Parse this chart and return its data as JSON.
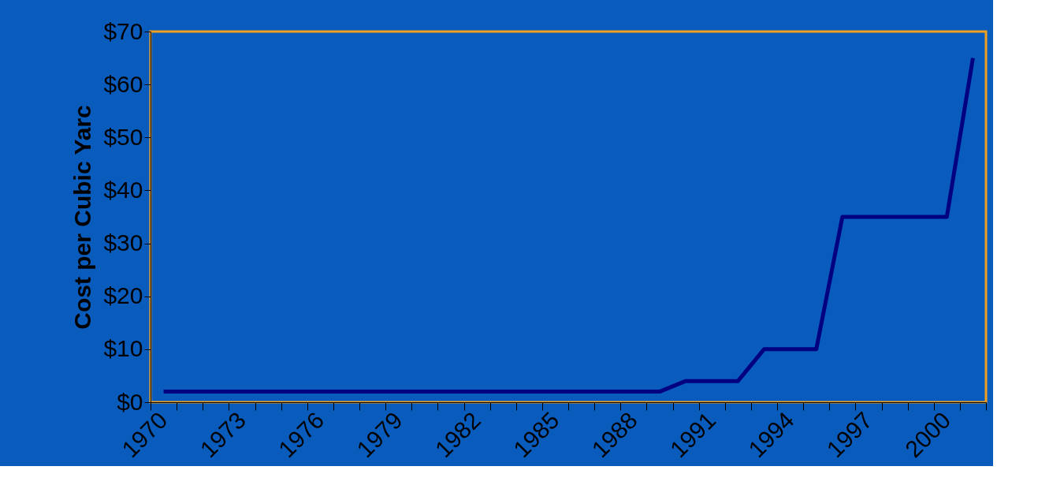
{
  "chart_data": {
    "type": "line",
    "ylabel": "Cost per Cubic Yarc",
    "categories": [
      "1970",
      null,
      null,
      "1973",
      null,
      null,
      "1976",
      null,
      null,
      "1979",
      null,
      null,
      "1982",
      null,
      null,
      "1985",
      null,
      null,
      "1988",
      null,
      null,
      "1991",
      null,
      null,
      "1994",
      null,
      null,
      "1997",
      null,
      null,
      "2000",
      null
    ],
    "series": [
      {
        "color": "#000080",
        "values": [
          2,
          2,
          2,
          2,
          2,
          2,
          2,
          2,
          2,
          2,
          2,
          2,
          2,
          2,
          2,
          2,
          2,
          2,
          2,
          2,
          4,
          4,
          4,
          10,
          10,
          10,
          35,
          35,
          35,
          35,
          35,
          65
        ]
      }
    ],
    "ylim": [
      0,
      70
    ],
    "yticks": [
      {
        "value": 0,
        "label": "$0"
      },
      {
        "value": 10,
        "label": "$10"
      },
      {
        "value": 20,
        "label": "$20"
      },
      {
        "value": 30,
        "label": "$30"
      },
      {
        "value": 40,
        "label": "$40"
      },
      {
        "value": 50,
        "label": "$50"
      },
      {
        "value": 60,
        "label": "$60"
      },
      {
        "value": 70,
        "label": "$70"
      }
    ],
    "grid": false,
    "marker": "none",
    "line_style": "solid"
  }
}
